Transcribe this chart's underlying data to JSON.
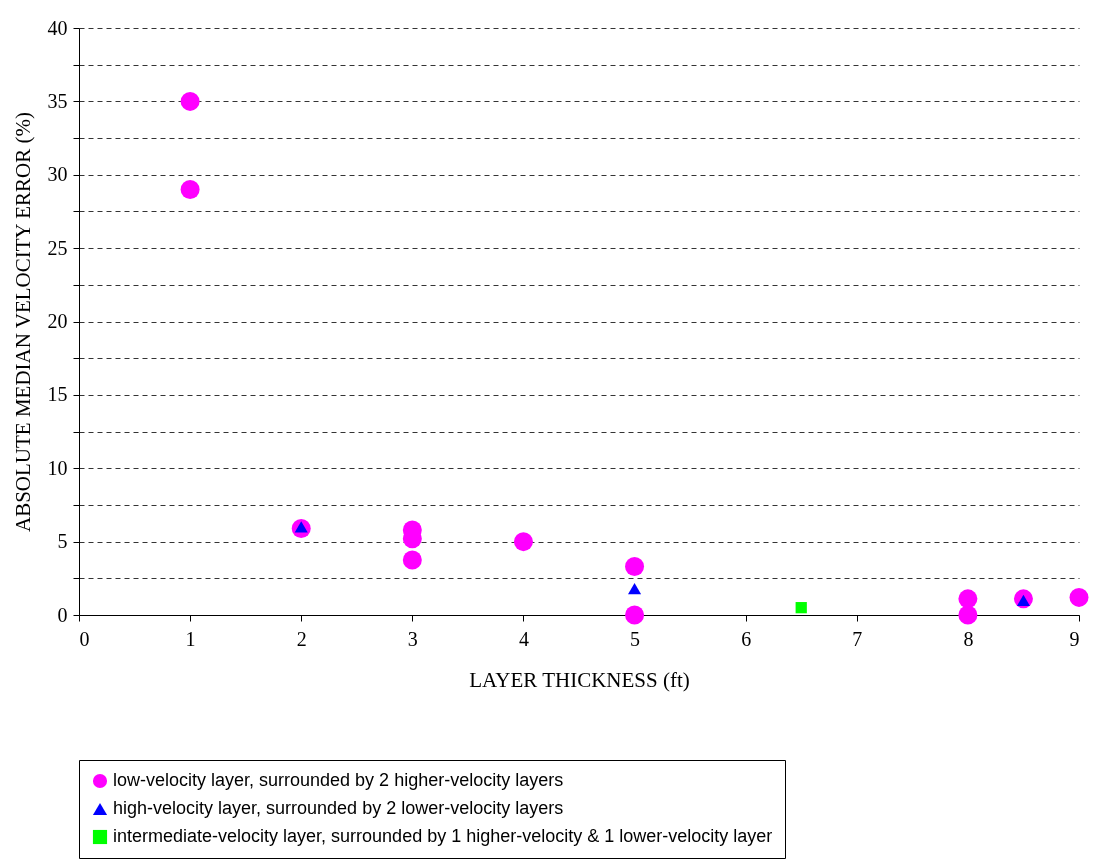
{
  "chart_data": {
    "type": "scatter",
    "xlabel": "LAYER THICKNESS (ft)",
    "ylabel": "ABSOLUTE MEDIAN VELOCITY ERROR (%)",
    "xlim": [
      0,
      9
    ],
    "xticks": [
      0,
      1,
      2,
      3,
      4,
      5,
      6,
      7,
      8,
      9
    ],
    "ylim": [
      0,
      40
    ],
    "yticks": [
      0,
      {
        "value": 2.5,
        "label": null
      },
      5,
      {
        "value": 7.5,
        "label": null
      },
      10,
      {
        "value": 12.5,
        "label": null
      },
      15,
      {
        "value": 17.5,
        "label": null
      },
      20,
      {
        "value": 22.5,
        "label": null
      },
      25,
      {
        "value": 27.5,
        "label": null
      },
      30,
      {
        "value": 32.5,
        "label": null
      },
      35,
      {
        "value": 37.5,
        "label": null
      },
      40
    ],
    "grid": "y",
    "legend": "bottom",
    "series": [
      {
        "name": "low-velocity layer, surrounded by 2 higher-velocity layers",
        "color": "#ff00ff",
        "marker": "circle",
        "x": [
          1,
          1,
          2,
          3,
          3,
          3,
          4,
          5,
          5,
          8,
          8,
          8.5,
          9
        ],
        "values": [
          35,
          29,
          5.9,
          5.8,
          5.2,
          3.75,
          5.0,
          3.3,
          0,
          1.1,
          0,
          1.1,
          1.2
        ]
      },
      {
        "name": "high-velocity layer, surrounded by 2 lower-velocity layers",
        "color": "#0000ff",
        "marker": "triangle",
        "x": [
          2,
          5,
          8.5
        ],
        "values": [
          6.0,
          1.8,
          1.0
        ]
      },
      {
        "name": "intermediate-velocity layer, surrounded by 1 higher-velocity & 1 lower-velocity layer",
        "color": "#00ff00",
        "marker": "square",
        "x": [
          6.5
        ],
        "values": [
          0.5
        ]
      }
    ]
  }
}
